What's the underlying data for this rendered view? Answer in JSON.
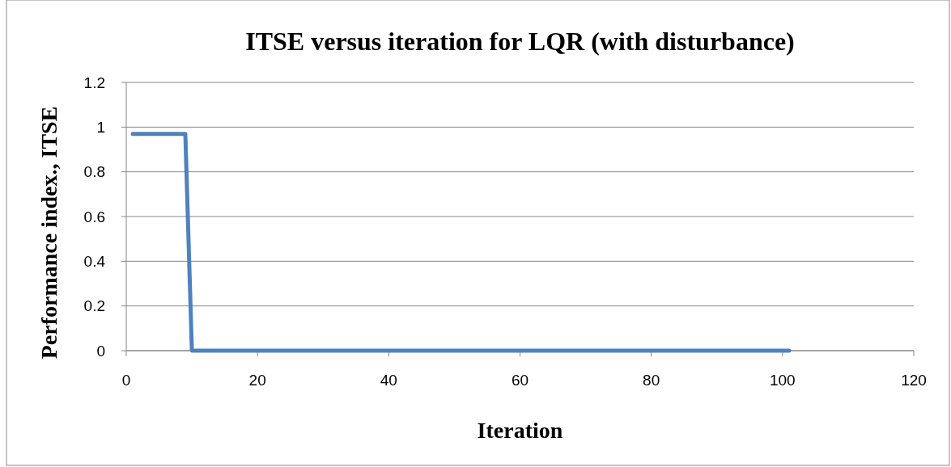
{
  "chart_data": {
    "type": "line",
    "title": "ITSE versus iteration for LQR (with disturbance)",
    "xlabel": "Iteration",
    "ylabel": "Performance index., ITSE",
    "series": [
      {
        "color": "#4f81bd",
        "x": [
          1,
          9,
          10,
          101
        ],
        "values": [
          0.97,
          0.97,
          0,
          0
        ]
      }
    ],
    "xlim": [
      0,
      120
    ],
    "xticks": [
      0,
      20,
      40,
      60,
      80,
      100,
      120
    ],
    "ylim": [
      0,
      1.2
    ],
    "yticks": [
      0,
      0.2,
      0.4,
      0.6,
      0.8,
      1,
      1.2
    ],
    "grid": "y",
    "marker": "none",
    "line_style": "solid"
  }
}
